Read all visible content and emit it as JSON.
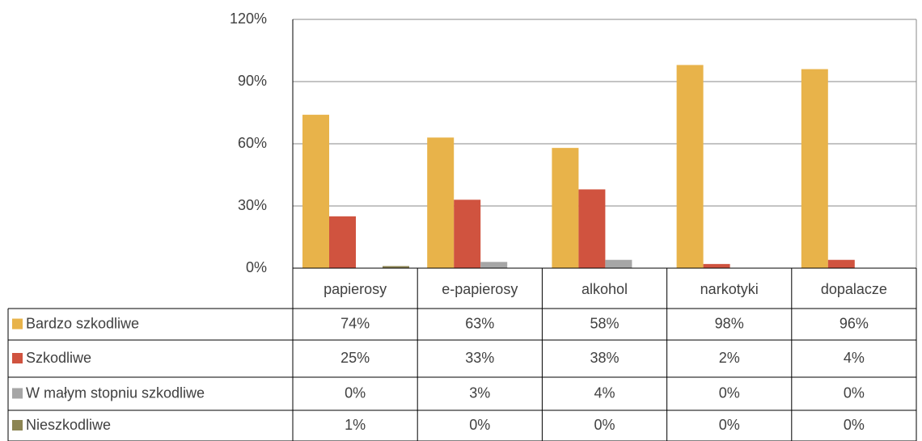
{
  "chart_data": {
    "type": "bar",
    "categories": [
      "papierosy",
      "e-papierosy",
      "alkohol",
      "narkotyki",
      "dopalacze"
    ],
    "series": [
      {
        "name": "Bardzo szkodliwe",
        "color": "#e8b34a",
        "values": [
          74,
          63,
          58,
          98,
          96
        ],
        "value_labels": [
          "74%",
          "63%",
          "58%",
          "98%",
          "96%"
        ]
      },
      {
        "name": "Szkodliwe",
        "color": "#d0533f",
        "values": [
          25,
          33,
          38,
          2,
          4
        ],
        "value_labels": [
          "25%",
          "33%",
          "38%",
          "2%",
          "4%"
        ]
      },
      {
        "name": "W małym stopniu szkodliwe",
        "color": "#a6a6a6",
        "values": [
          0,
          3,
          4,
          0,
          0
        ],
        "value_labels": [
          "0%",
          "3%",
          "4%",
          "0%",
          "0%"
        ]
      },
      {
        "name": "Nieszkodliwe",
        "color": "#8c8553",
        "values": [
          1,
          0,
          0,
          0,
          0
        ],
        "value_labels": [
          "1%",
          "0%",
          "0%",
          "0%",
          "0%"
        ]
      }
    ],
    "ylim": [
      0,
      120
    ],
    "yticks": [
      {
        "value": 0,
        "label": "0%"
      },
      {
        "value": 30,
        "label": "30%"
      },
      {
        "value": 60,
        "label": "60%"
      },
      {
        "value": 90,
        "label": "90%"
      },
      {
        "value": 120,
        "label": "120%"
      }
    ],
    "grid": true
  }
}
